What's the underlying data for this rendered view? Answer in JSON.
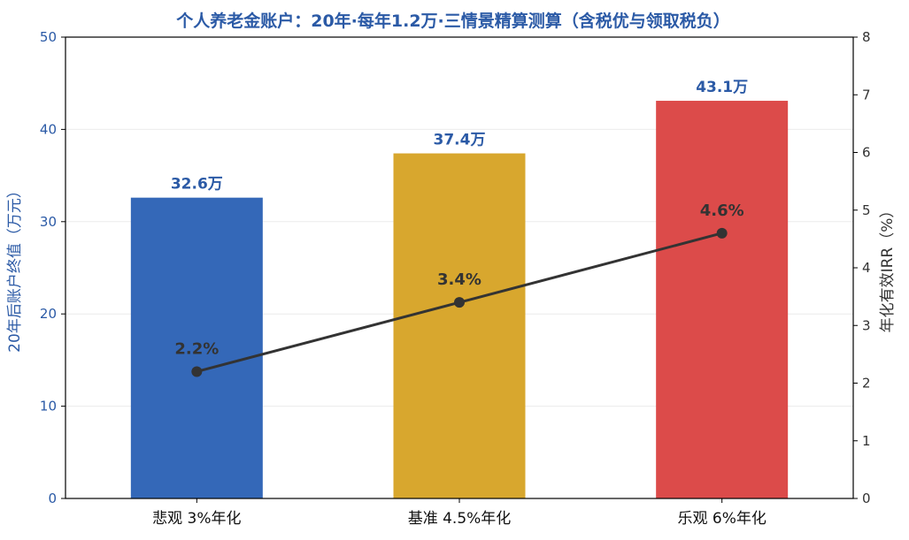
{
  "chart_data": {
    "type": "bar+line",
    "title": "个人养老金账户：20年·每年1.2万·三情景精算测算（含税优与领取税负）",
    "categories": [
      "悲观 3%年化",
      "基准 4.5%年化",
      "乐观 6%年化"
    ],
    "bar_series": {
      "name": "20年后账户终值（万元）",
      "values": [
        32.6,
        37.4,
        43.1
      ],
      "labels": [
        "32.6万",
        "37.4万",
        "43.1万"
      ],
      "colors": [
        "#3468b8",
        "#d8a72e",
        "#dc4b4a"
      ]
    },
    "line_series": {
      "name": "年化有效IRR（%）",
      "values": [
        2.2,
        3.4,
        4.6
      ],
      "labels": [
        "2.2%",
        "3.4%",
        "4.6%"
      ],
      "color": "#333333"
    },
    "y_left": {
      "label": "20年后账户终值（万元）",
      "range": [
        0,
        50
      ],
      "ticks": [
        "0",
        "10",
        "20",
        "30",
        "40",
        "50"
      ]
    },
    "y_right": {
      "label": "年化有效IRR（%）",
      "range": [
        0,
        8
      ],
      "ticks": [
        "0",
        "1",
        "2",
        "3",
        "4",
        "5",
        "6",
        "7",
        "8"
      ]
    },
    "grid": true,
    "legend": "none"
  }
}
